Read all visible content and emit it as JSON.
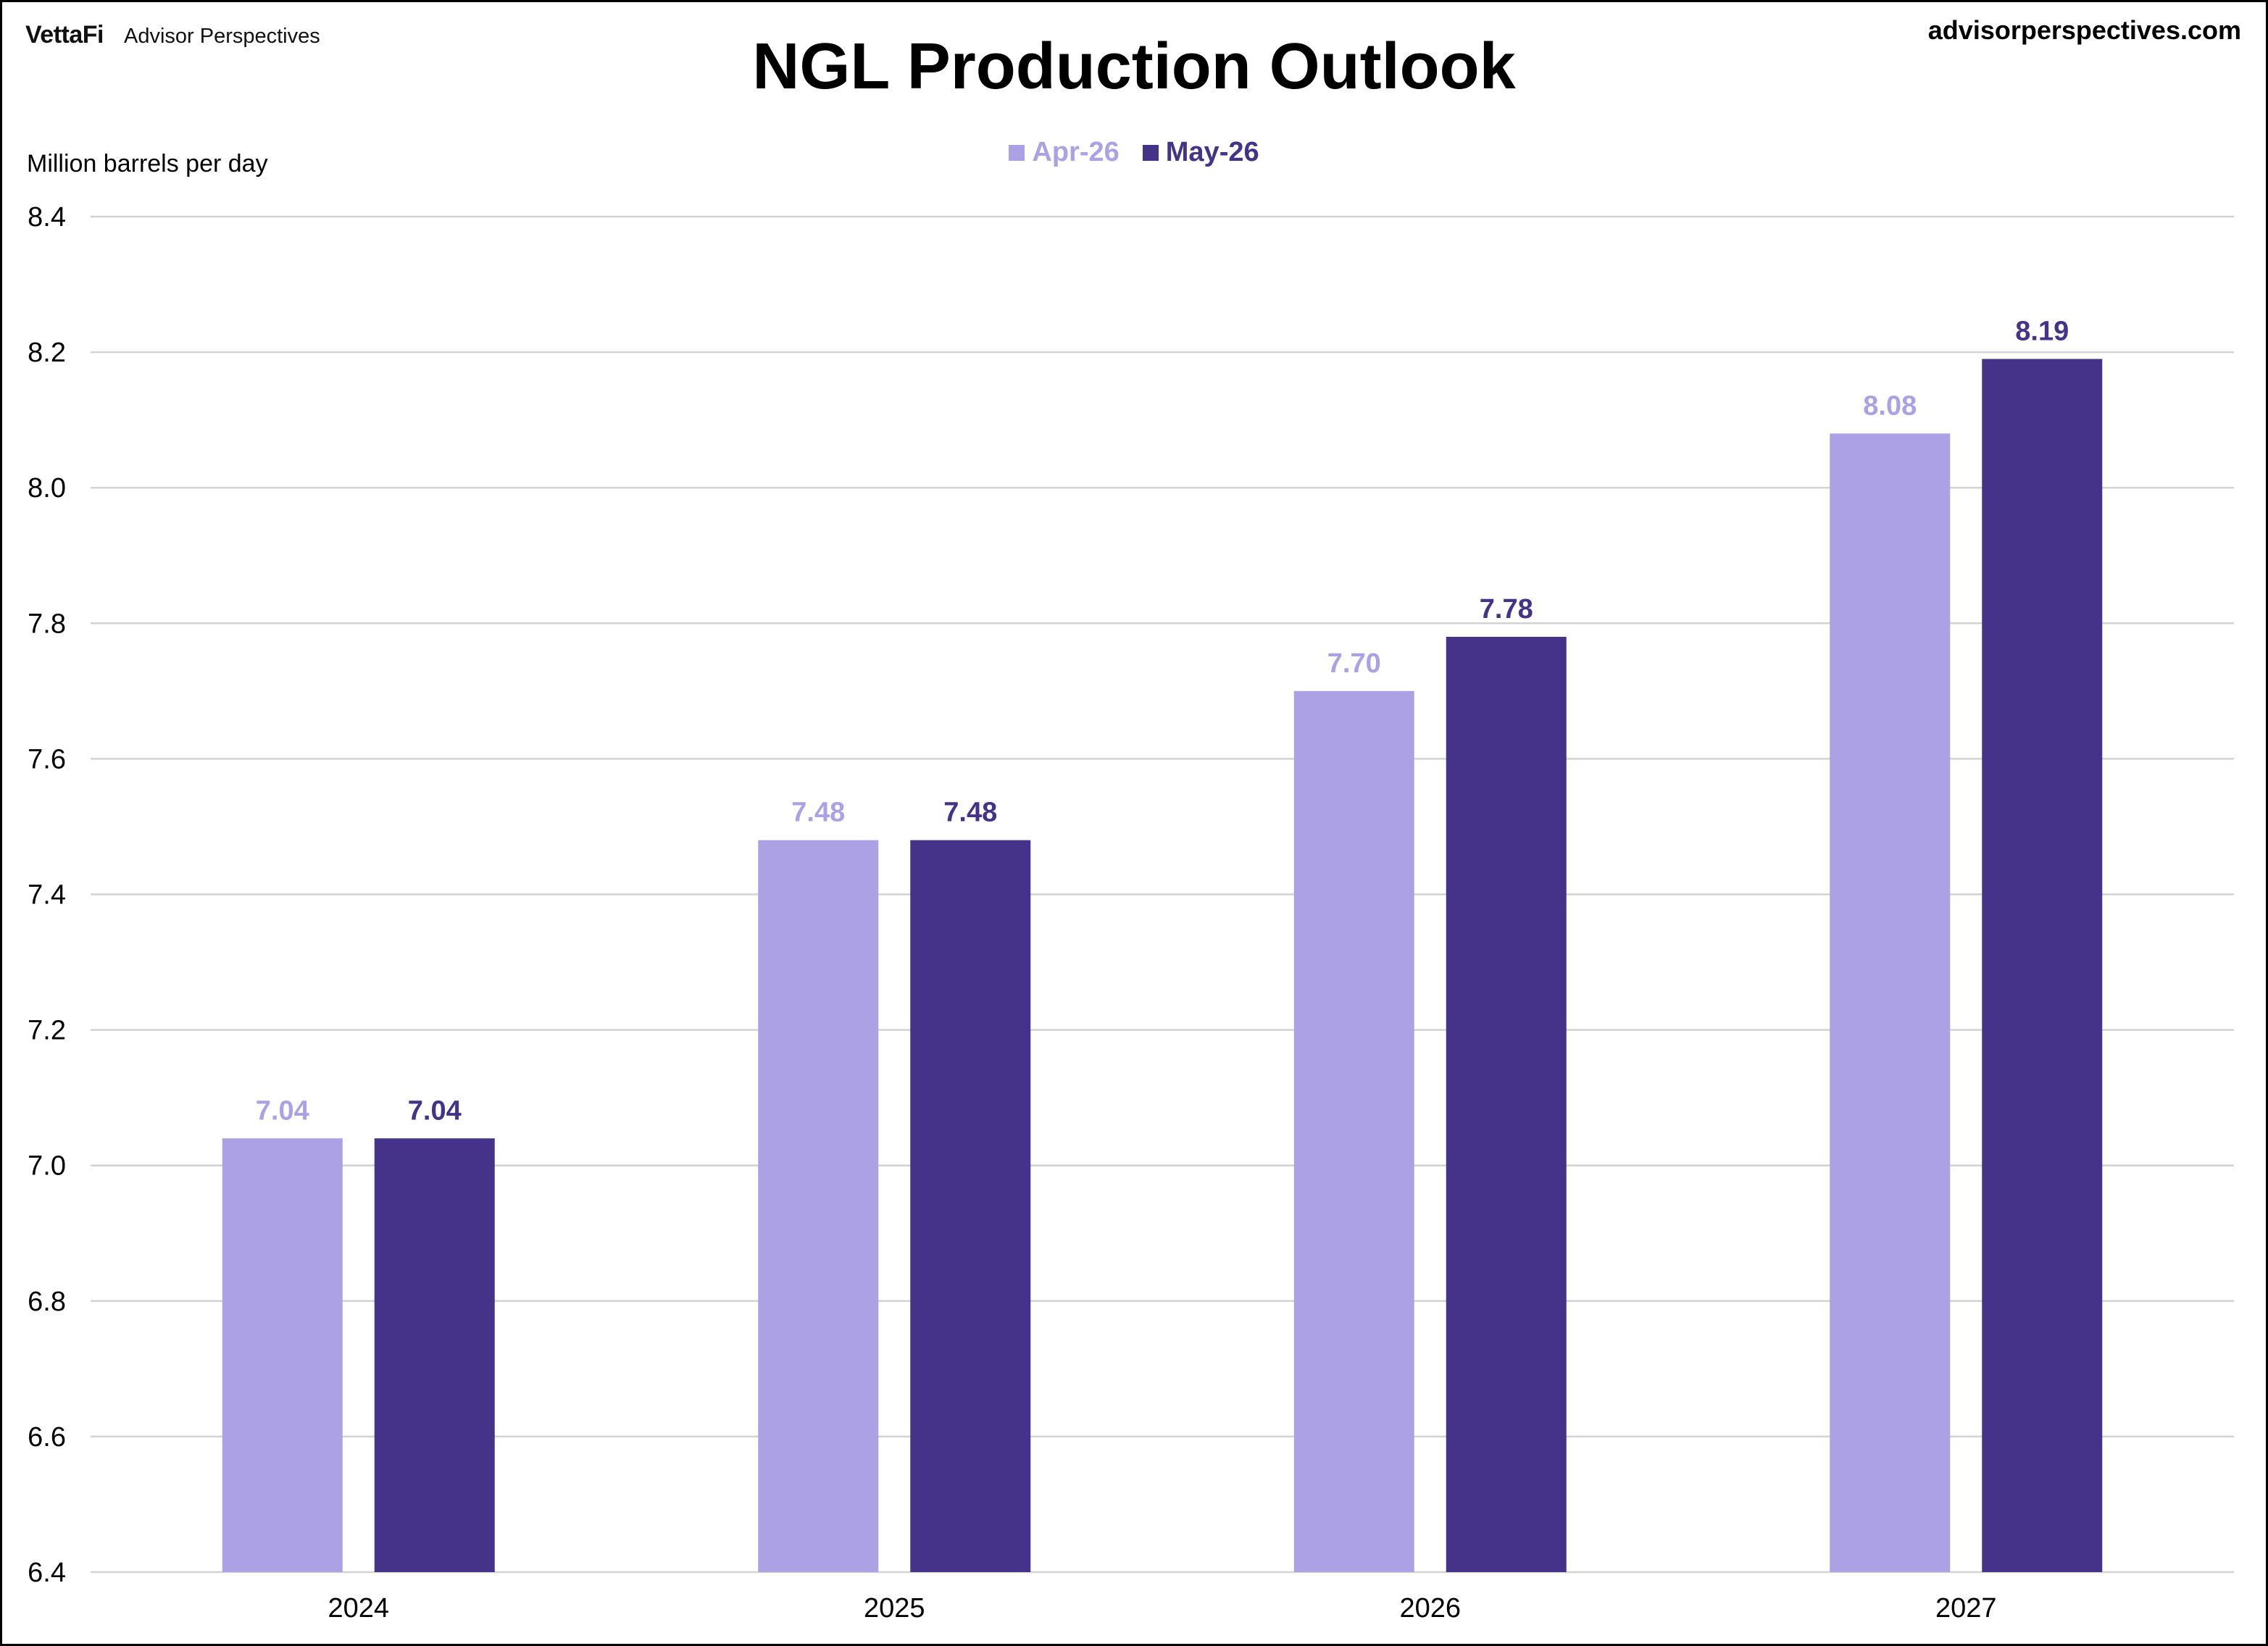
{
  "header": {
    "brand_logo": "VettaFi",
    "brand_name": "Advisor Perspectives",
    "site": "advisorperspectives.com"
  },
  "chart_data": {
    "type": "bar",
    "title": "NGL Production Outlook",
    "ylabel": "Million barrels per day",
    "xlabel": "",
    "categories": [
      "2024",
      "2025",
      "2026",
      "2027"
    ],
    "series": [
      {
        "name": "Apr-26",
        "values": [
          7.04,
          7.48,
          7.7,
          8.08
        ],
        "labels": [
          "7.04",
          "7.48",
          "7.70",
          "8.08"
        ],
        "color": "#ada1e6"
      },
      {
        "name": "May-26",
        "values": [
          7.04,
          7.48,
          7.78,
          8.19
        ],
        "labels": [
          "7.04",
          "7.48",
          "7.78",
          "8.19"
        ],
        "color": "#45338a"
      }
    ],
    "ylim": [
      6.4,
      8.4
    ],
    "yticks": [
      "6.4",
      "6.6",
      "6.8",
      "7.0",
      "7.2",
      "7.4",
      "7.6",
      "7.8",
      "8.0",
      "8.2",
      "8.4"
    ],
    "grid": true,
    "legend_position": "top-center",
    "gridline_color": "#d3d3d3"
  }
}
